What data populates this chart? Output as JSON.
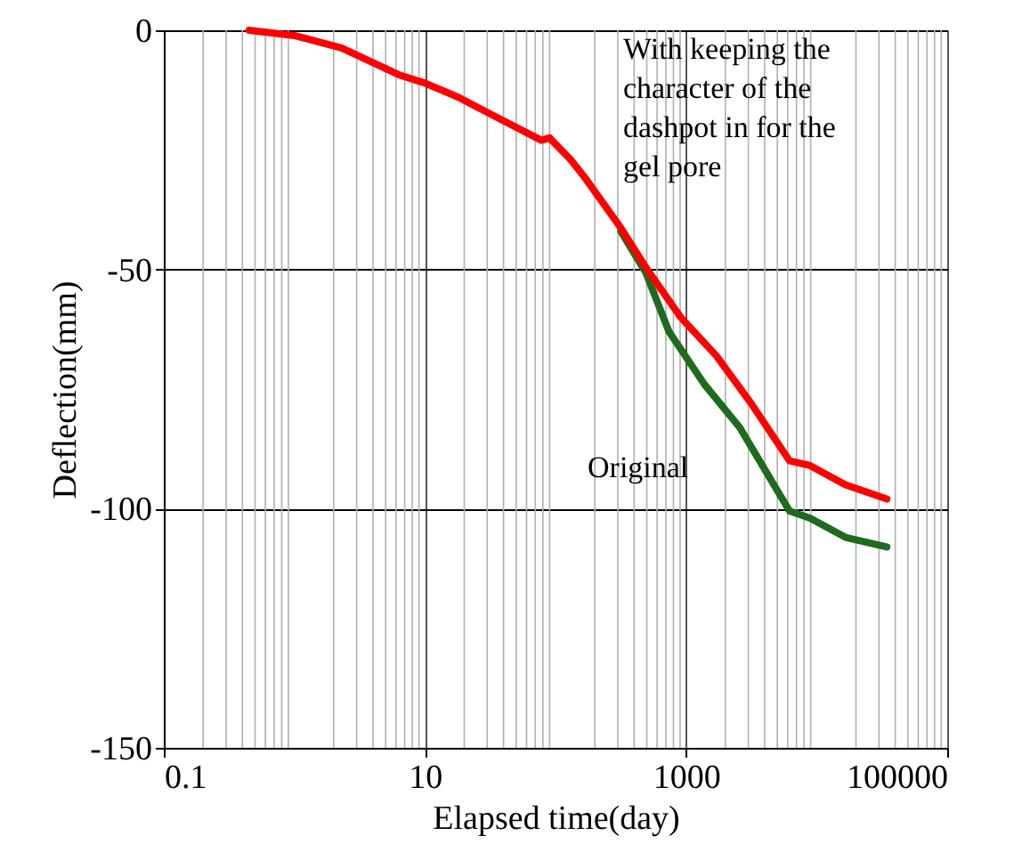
{
  "chart_data": {
    "type": "line",
    "xlabel": "Elapsed time(day)",
    "ylabel": "Deflection(mm)",
    "log": "x",
    "xlim": [
      0.1,
      100000
    ],
    "xticks": [
      0.1,
      10,
      1000,
      100000
    ],
    "ylim": [
      -150,
      0
    ],
    "yticks": [
      -150,
      -100,
      -50,
      0
    ],
    "grid": true,
    "legend": false,
    "line_style": "solid",
    "marker": "none",
    "series": [
      {
        "name": "Original",
        "color": "#1e6b1e",
        "x": [
          316,
          490,
          740,
          1380,
          2570,
          6200,
          8900,
          16600,
          34500
        ],
        "values": [
          -42,
          -50.6,
          -63,
          -74,
          -83,
          -100.5,
          -102,
          -106,
          -108
        ]
      },
      {
        "name": "With keeping the character of the dashpot in for the gel pore",
        "color": "#ff0000",
        "x": [
          0.45,
          1.0,
          2.3,
          6.3,
          9.9,
          18,
          38,
          78,
          90,
          130,
          170,
          316,
          490,
          910,
          1700,
          3150,
          6200,
          8900,
          16600,
          34500
        ],
        "values": [
          0,
          -1.1,
          -3.7,
          -9.3,
          -11,
          -14,
          -18.6,
          -23,
          -22.5,
          -27,
          -31,
          -41.3,
          -49.5,
          -60,
          -68,
          -78,
          -90,
          -91,
          -95,
          -98
        ]
      }
    ]
  }
}
